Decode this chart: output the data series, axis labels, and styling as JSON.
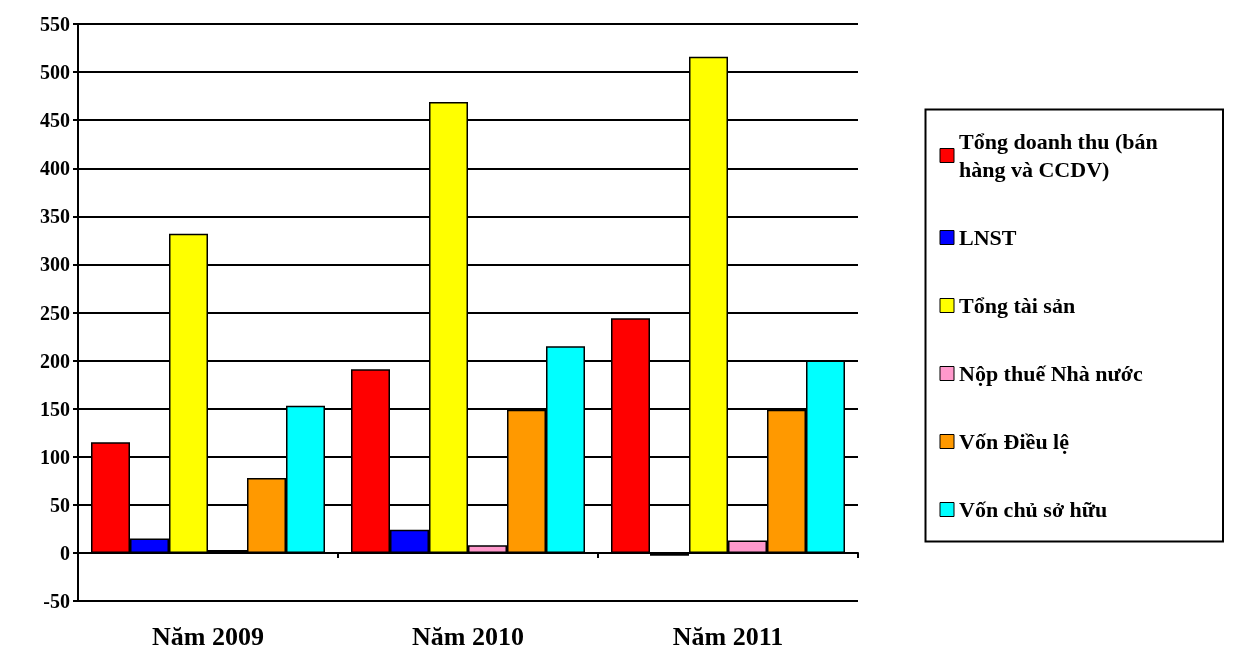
{
  "chart_data": {
    "type": "bar",
    "categories": [
      "Năm 2009",
      "Năm 2010",
      "Năm 2011"
    ],
    "series": [
      {
        "name": "Tổng doanh thu (bán hàng và CCDV)",
        "color": "#ff0000",
        "values": [
          115,
          191,
          244
        ]
      },
      {
        "name": "LNST",
        "color": "#0000ff",
        "values": [
          15,
          24,
          -3
        ]
      },
      {
        "name": "Tổng tài sản",
        "color": "#ffff00",
        "values": [
          332,
          469,
          516
        ]
      },
      {
        "name": "Nộp thuế Nhà nước",
        "color": "#ff99cc",
        "values": [
          3,
          8,
          13
        ]
      },
      {
        "name": "Vốn Điều lệ",
        "color": "#ff9900",
        "values": [
          78,
          149,
          149
        ]
      },
      {
        "name": "Vốn chủ sở hữu",
        "color": "#00ffff",
        "values": [
          153,
          215,
          200
        ]
      }
    ],
    "ylim": [
      -50,
      550
    ],
    "yticks": [
      -50,
      0,
      50,
      100,
      150,
      200,
      250,
      300,
      350,
      400,
      450,
      500,
      550
    ],
    "grid": "y",
    "legend": "right"
  }
}
